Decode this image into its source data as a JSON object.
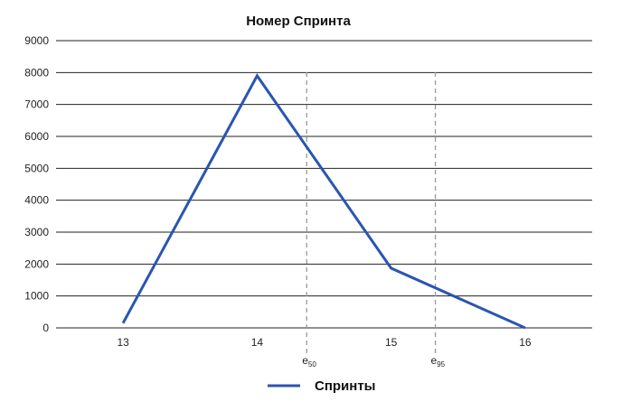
{
  "chart_data": {
    "type": "line",
    "title": "Номер Спринта",
    "xlabel": "",
    "ylabel": "",
    "x": [
      13,
      14,
      15,
      16
    ],
    "xlim": [
      12.5,
      16.5
    ],
    "ylim": [
      0,
      9000
    ],
    "yticks": [
      0,
      1000,
      2000,
      3000,
      4000,
      5000,
      6000,
      7000,
      8000,
      9000
    ],
    "grid": true,
    "legend_position": "bottom-center",
    "series": [
      {
        "name": "Спринты",
        "color": "#2a55b1",
        "values": [
          150,
          7900,
          1870,
          0
        ]
      }
    ],
    "markers": [
      {
        "x": 14.37,
        "label": "e",
        "sub": "50"
      },
      {
        "x": 15.33,
        "label": "e",
        "sub": "95"
      }
    ],
    "colors": {
      "grid": "#222222",
      "marker_line": "#999999"
    }
  }
}
